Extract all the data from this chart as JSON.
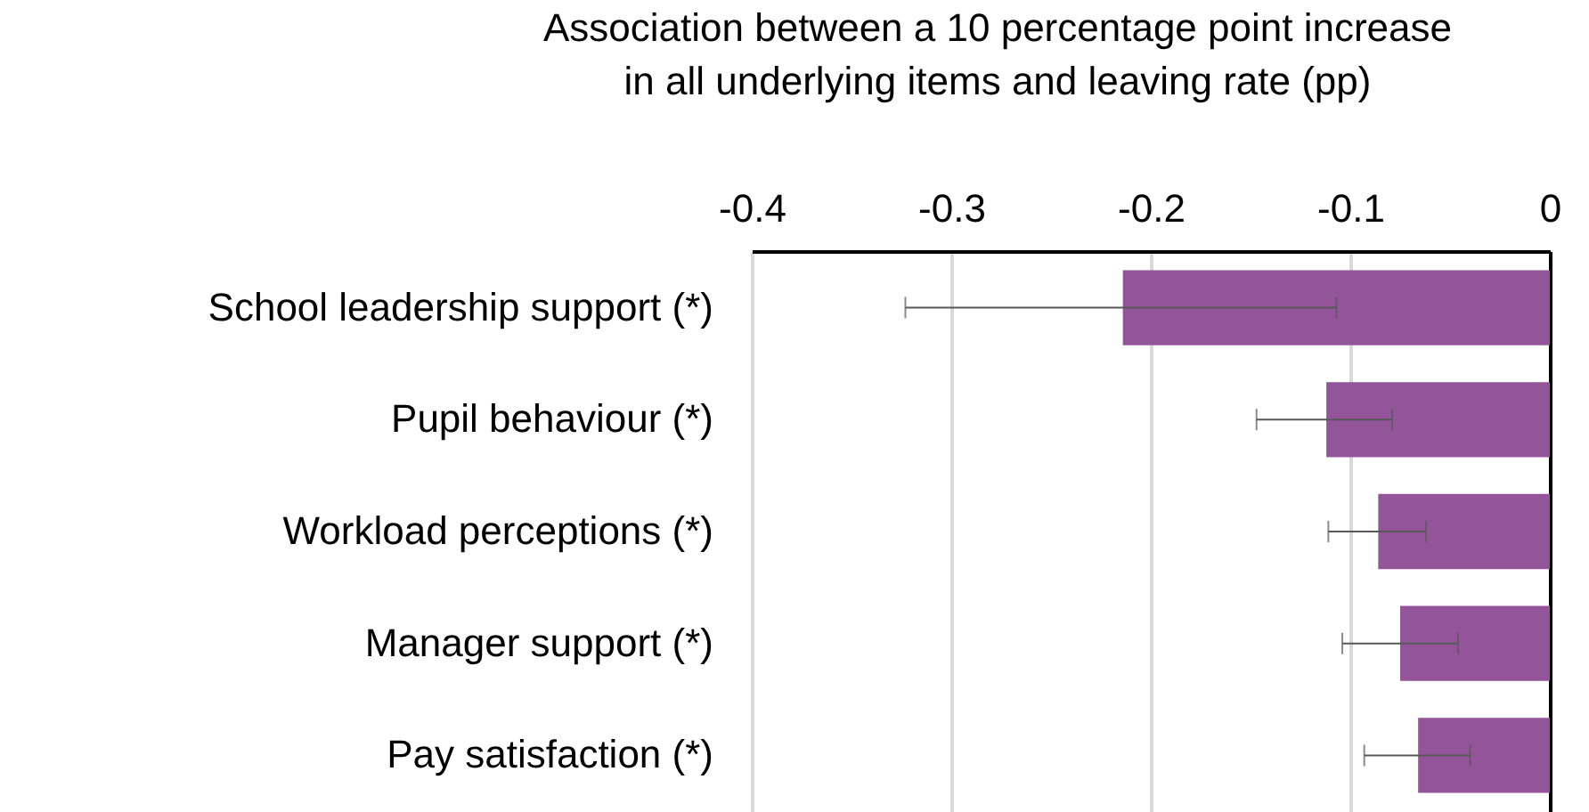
{
  "chart_data": {
    "type": "bar",
    "orientation": "horizontal",
    "xlabel": "Association between a 10 percentage point increase\nin all underlying items and leaving rate (pp)",
    "categories": [
      "School leadership support (*)",
      "Pupil behaviour (*)",
      "Workload perceptions (*)",
      "Manager support (*)",
      "Pay satisfaction (*)"
    ],
    "values": [
      -0.214,
      -0.112,
      -0.086,
      -0.075,
      -0.066
    ],
    "errors": [
      [
        -0.323,
        -0.107
      ],
      [
        -0.147,
        -0.079
      ],
      [
        -0.111,
        -0.062
      ],
      [
        -0.104,
        -0.046
      ],
      [
        -0.093,
        -0.04
      ]
    ],
    "color": "#93549a",
    "xlim": [
      -0.4,
      0
    ],
    "xticks": [
      -0.4,
      -0.3,
      -0.2,
      -0.1,
      0
    ],
    "grid": "x"
  }
}
